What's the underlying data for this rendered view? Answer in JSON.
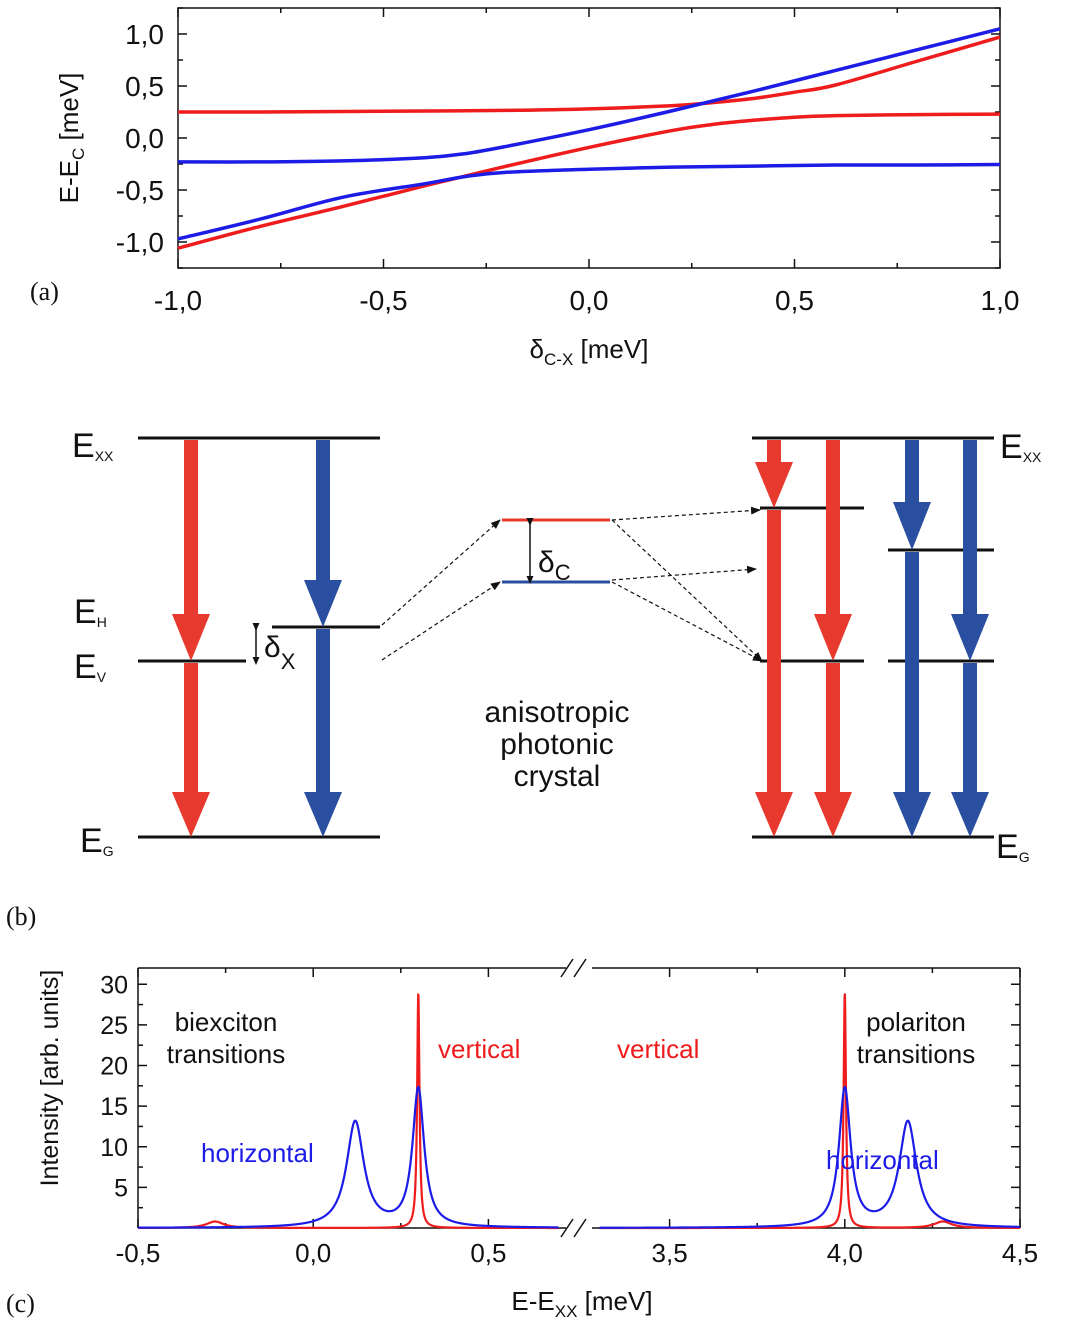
{
  "panel_labels": {
    "a": "(a)",
    "b": "(b)",
    "c": "(c)"
  },
  "colors": {
    "red": "#e8392e",
    "blue": "#2a4fa0",
    "plot_red": "#ee1c1c",
    "plot_blue": "#1c1ce6"
  },
  "chart_data": [
    {
      "type": "line",
      "panel": "(a)",
      "xlabel_main": "δ",
      "xlabel_sub": "C-X",
      "xlabel_rest": " [meV]",
      "ylabel_main": "E-E",
      "ylabel_sub": "C",
      "ylabel_rest": " [meV]",
      "xlim": [
        -1.0,
        1.0
      ],
      "ylim": [
        -1.25,
        1.25
      ],
      "xticks": [
        "-1,0",
        "-0,5",
        "0,0",
        "0,5",
        "1,0"
      ],
      "yticks": [
        "-1,0",
        "-0,5",
        "0,0",
        "0,5",
        "1,0"
      ],
      "series": [
        {
          "color": "red",
          "x": [
            -1.0,
            -0.8,
            -0.6,
            -0.4,
            -0.2,
            0.0,
            0.2,
            0.3,
            0.4,
            0.5,
            0.6,
            0.8,
            1.0
          ],
          "y": [
            0.25,
            0.25,
            0.255,
            0.26,
            0.265,
            0.28,
            0.31,
            0.34,
            0.38,
            0.44,
            0.51,
            0.74,
            0.97
          ]
        },
        {
          "color": "red",
          "x": [
            -1.0,
            -0.8,
            -0.6,
            -0.4,
            -0.2,
            0.0,
            0.2,
            0.3,
            0.4,
            0.5,
            0.6,
            0.8,
            1.0
          ],
          "y": [
            -1.06,
            -0.85,
            -0.66,
            -0.46,
            -0.27,
            -0.09,
            0.07,
            0.13,
            0.17,
            0.2,
            0.215,
            0.225,
            0.23
          ]
        },
        {
          "color": "blue",
          "x": [
            -1.0,
            -0.8,
            -0.6,
            -0.4,
            -0.3,
            -0.2,
            0.0,
            0.2,
            0.4,
            0.6,
            0.8,
            1.0
          ],
          "y": [
            -0.97,
            -0.78,
            -0.57,
            -0.44,
            -0.37,
            -0.33,
            -0.3,
            -0.28,
            -0.27,
            -0.26,
            -0.26,
            -0.255
          ]
        },
        {
          "color": "blue",
          "x": [
            -1.0,
            -0.8,
            -0.6,
            -0.4,
            -0.3,
            -0.2,
            0.0,
            0.2,
            0.4,
            0.6,
            0.8,
            1.0
          ],
          "y": [
            -0.23,
            -0.23,
            -0.22,
            -0.19,
            -0.15,
            -0.08,
            0.08,
            0.26,
            0.45,
            0.65,
            0.85,
            1.05
          ]
        }
      ]
    },
    {
      "type": "line",
      "panel": "(c)",
      "xlabel_main": "E-E",
      "xlabel_sub": "XX",
      "xlabel_rest": " [meV]",
      "ylabel": "Intensity [arb. units]",
      "ylim": [
        0,
        32
      ],
      "yticks": [
        "5",
        "10",
        "15",
        "20",
        "25",
        "30"
      ],
      "left_segment": {
        "xlim": [
          -0.5,
          0.75
        ],
        "xticks": [
          "-0,5",
          "0,0",
          "0,5"
        ]
      },
      "right_segment": {
        "xlim": [
          3.25,
          4.5
        ],
        "xticks": [
          "3,5",
          "4,0",
          "4,5"
        ]
      },
      "annotations": {
        "biexciton_1": "biexciton",
        "biexciton_2": "transitions",
        "polariton_1": "polariton",
        "polariton_2": "transitions",
        "vertical_left": "vertical",
        "vertical_right": "vertical",
        "horizontal_left": "horizontal",
        "horizontal_right": "horizontal"
      },
      "series": [
        {
          "color": "red",
          "peaks": [
            {
              "x0": 0.3,
              "height": 29,
              "width": 0.004
            },
            {
              "x0": -0.28,
              "height": 0.8,
              "width": 0.03
            },
            {
              "x0": 4.0,
              "height": 29,
              "width": 0.004
            },
            {
              "x0": 4.28,
              "height": 0.8,
              "width": 0.03
            }
          ]
        },
        {
          "color": "blue",
          "peaks": [
            {
              "x0": 0.12,
              "height": 13,
              "width": 0.03
            },
            {
              "x0": 0.3,
              "height": 17,
              "width": 0.02
            },
            {
              "x0": 4.0,
              "height": 17,
              "width": 0.02
            },
            {
              "x0": 4.18,
              "height": 13,
              "width": 0.03
            }
          ]
        }
      ]
    }
  ],
  "diagram_b": {
    "left_labels": {
      "exx_main": "E",
      "exx_sub": "XX",
      "eh_main": "E",
      "eh_sub": "H",
      "ev_main": "E",
      "ev_sub": "V",
      "eg_main": "E",
      "eg_sub": "G"
    },
    "delta_x_main": "δ",
    "delta_x_sub": "X",
    "delta_c_main": "δ",
    "delta_c_sub": "C",
    "crystal_1": "anisotropic",
    "crystal_2": "photonic",
    "crystal_3": "crystal",
    "right_labels": {
      "exx_main": "E",
      "exx_sub": "XX",
      "eg_main": "E",
      "eg_sub": "G"
    }
  }
}
